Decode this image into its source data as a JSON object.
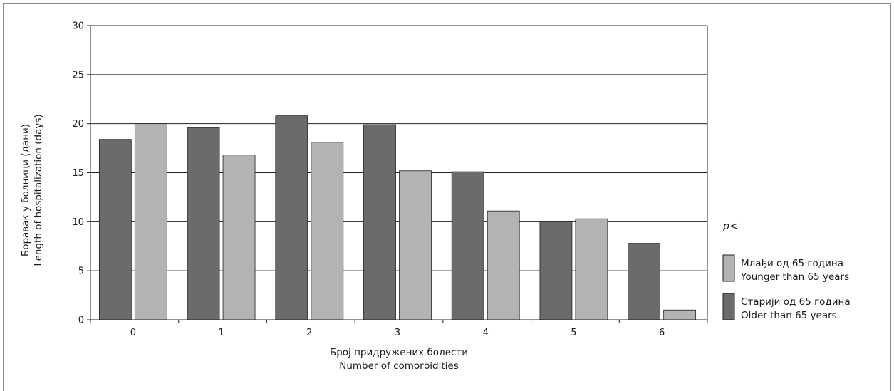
{
  "chart_data": {
    "type": "bar",
    "categories": [
      "0",
      "1",
      "2",
      "3",
      "4",
      "5",
      "6"
    ],
    "series": [
      {
        "name": "Старији од 65 година / Older than 65 years",
        "values": [
          18.4,
          19.6,
          20.8,
          19.9,
          15.1,
          10.0,
          7.8
        ]
      },
      {
        "name": "Млађи од 65 година / Younger than 65 years",
        "values": [
          20.0,
          16.8,
          18.1,
          15.2,
          11.1,
          10.3,
          1.0
        ]
      }
    ],
    "ylim": [
      0,
      30
    ],
    "yticks": [
      "0",
      "5",
      "10",
      "15",
      "20",
      "25",
      "30"
    ],
    "ylabel_line1": "Боравак у болници (дани)",
    "ylabel_line2": "Length of hospitalization (days)",
    "xlabel_line1": "Број придружених болести",
    "xlabel_line2": "Number of comorbidities",
    "grid": true,
    "legend_position": "right"
  },
  "legend": {
    "p_label": "p<",
    "items": [
      {
        "line1": "Млађи од 65 година",
        "line2": "Younger than 65 years",
        "color": "#b3b3b3"
      },
      {
        "line1": "Старији од 65 година",
        "line2": "Older than 65 years",
        "color": "#6b6b6b"
      }
    ]
  },
  "colors": {
    "older": "#6b6b6b",
    "younger": "#b3b3b3",
    "bar_stroke": "#222222",
    "grid": "#222222"
  }
}
